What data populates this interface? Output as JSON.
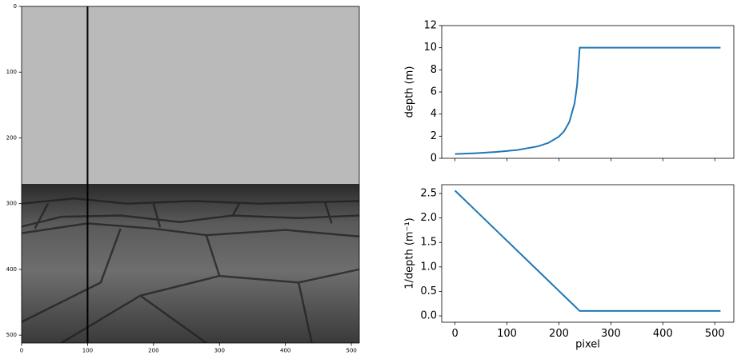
{
  "chart_data": [
    {
      "type": "image",
      "xlim": [
        0,
        512
      ],
      "ylim": [
        512,
        0
      ],
      "xticks": [
        0,
        100,
        200,
        300,
        400,
        500
      ],
      "yticks": [
        0,
        100,
        200,
        300,
        400,
        500
      ],
      "vline": 100,
      "vline_color": "#000000"
    },
    {
      "type": "line",
      "xlim": [
        -25.55,
        536.55
      ],
      "ylim": [
        0,
        12
      ],
      "xticks": [
        0,
        100,
        200,
        300,
        400,
        500
      ],
      "x_tick_labels": false,
      "yticks": [
        0,
        2,
        4,
        6,
        8,
        10,
        12
      ],
      "ylabel": "depth (m)",
      "series": [
        {
          "color": "#1f77b4",
          "x": [
            0,
            40,
            80,
            120,
            160,
            180,
            200,
            210,
            220,
            230,
            235,
            240,
            511
          ],
          "values": [
            0.391,
            0.465,
            0.575,
            0.752,
            1.087,
            1.399,
            1.961,
            2.454,
            3.279,
            4.938,
            6.61,
            10,
            10
          ]
        }
      ]
    },
    {
      "type": "line",
      "xlim": [
        -25.55,
        536.55
      ],
      "ylim": [
        -0.13,
        2.68
      ],
      "xticks": [
        0,
        100,
        200,
        300,
        400,
        500
      ],
      "x_tick_labels": true,
      "yticks": [
        {
          "value": 0,
          "label": "0.0"
        },
        {
          "value": 0.5,
          "label": "0.5"
        },
        {
          "value": 1,
          "label": "1.0"
        },
        {
          "value": 1.5,
          "label": "1.5"
        },
        {
          "value": 2,
          "label": "2.0"
        },
        {
          "value": 2.5,
          "label": "2.5"
        }
      ],
      "xlabel": "pixel",
      "ylabel": "1/depth (m⁻¹)",
      "series": [
        {
          "color": "#1f77b4",
          "x": [
            0,
            40,
            80,
            120,
            160,
            180,
            200,
            210,
            220,
            230,
            235,
            240,
            511
          ],
          "values": [
            2.56,
            2.15,
            1.74,
            1.33,
            0.92,
            0.715,
            0.51,
            0.4075,
            0.305,
            0.2025,
            0.151,
            0.1,
            0.1
          ]
        }
      ]
    }
  ]
}
